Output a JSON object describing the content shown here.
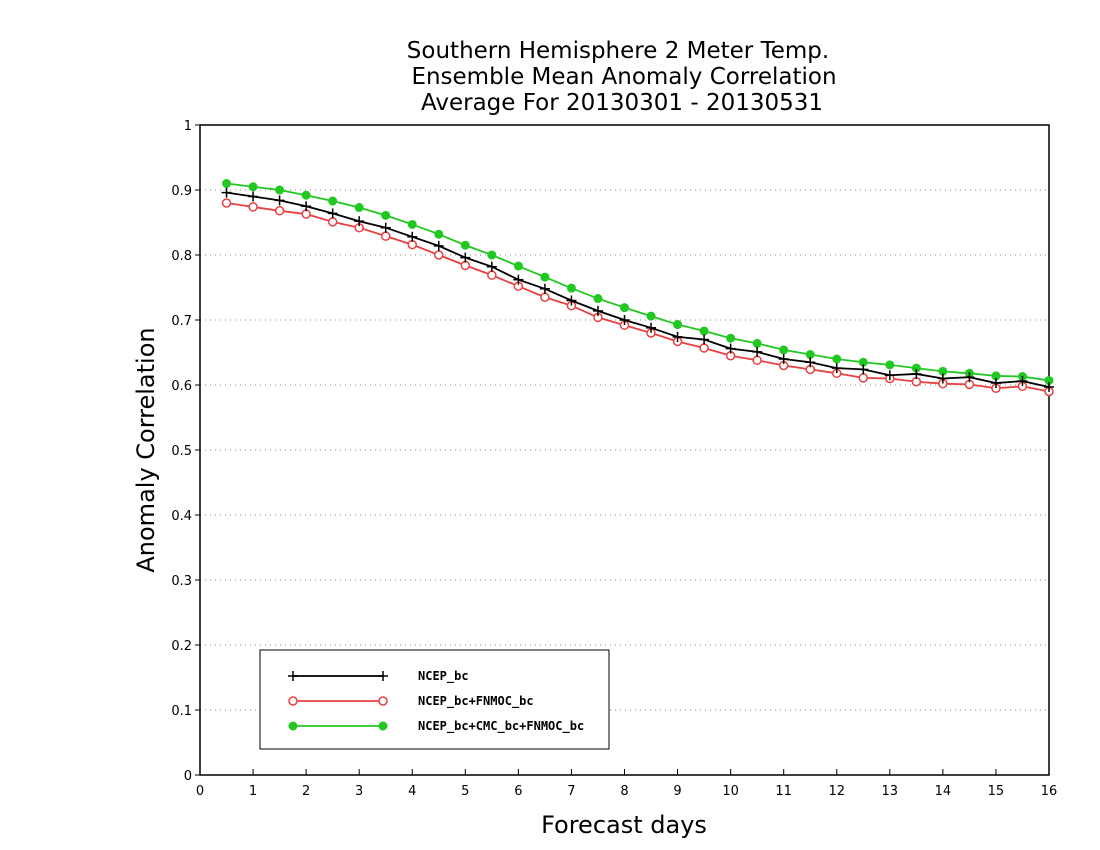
{
  "chart_data": {
    "type": "line",
    "title_lines": [
      "Southern Hemisphere 2 Meter Temp.",
      "Ensemble Mean Anomaly Correlation",
      "Average For 20130301 - 20130531"
    ],
    "xlabel": "Forecast days",
    "ylabel": "Anomaly Correlation",
    "xlim": [
      0,
      16
    ],
    "ylim": [
      0,
      1
    ],
    "x_ticks": [
      "0",
      "1",
      "2",
      "3",
      "4",
      "5",
      "6",
      "7",
      "8",
      "9",
      "10",
      "11",
      "12",
      "13",
      "14",
      "15",
      "16"
    ],
    "y_ticks": [
      "0",
      "0.1",
      "0.2",
      "0.3",
      "0.4",
      "0.5",
      "0.6",
      "0.7",
      "0.8",
      "0.9",
      "1"
    ],
    "grid": "horizontal dotted",
    "legend_position": "bottom-left",
    "x": [
      0.5,
      1,
      1.5,
      2,
      2.5,
      3,
      3.5,
      4,
      4.5,
      5,
      5.5,
      6,
      6.5,
      7,
      7.5,
      8,
      8.5,
      9,
      9.5,
      10,
      10.5,
      11,
      11.5,
      12,
      12.5,
      13,
      13.5,
      14,
      14.5,
      15,
      15.5,
      16
    ],
    "series": [
      {
        "name": "NCEP_bc",
        "color": "#000000",
        "marker": "plus",
        "values": [
          0.896,
          0.89,
          0.884,
          0.875,
          0.864,
          0.852,
          0.842,
          0.828,
          0.814,
          0.796,
          0.782,
          0.762,
          0.748,
          0.73,
          0.714,
          0.7,
          0.688,
          0.674,
          0.67,
          0.656,
          0.651,
          0.64,
          0.635,
          0.626,
          0.624,
          0.615,
          0.617,
          0.61,
          0.612,
          0.603,
          0.606,
          0.597
        ]
      },
      {
        "name": "NCEP_bc+FNMOC_bc",
        "color": "#e84040",
        "marker": "open-circle",
        "values": [
          0.88,
          0.874,
          0.868,
          0.863,
          0.851,
          0.842,
          0.829,
          0.816,
          0.8,
          0.784,
          0.769,
          0.752,
          0.735,
          0.722,
          0.704,
          0.692,
          0.68,
          0.667,
          0.657,
          0.645,
          0.638,
          0.63,
          0.624,
          0.618,
          0.611,
          0.61,
          0.605,
          0.602,
          0.601,
          0.595,
          0.598,
          0.59
        ]
      },
      {
        "name": "NCEP_bc+CMC_bc+FNMOC_bc",
        "color": "#22c822",
        "marker": "filled-circle",
        "values": [
          0.91,
          0.905,
          0.9,
          0.892,
          0.883,
          0.873,
          0.861,
          0.847,
          0.832,
          0.815,
          0.8,
          0.783,
          0.766,
          0.749,
          0.733,
          0.719,
          0.706,
          0.693,
          0.683,
          0.672,
          0.664,
          0.654,
          0.647,
          0.64,
          0.635,
          0.631,
          0.626,
          0.621,
          0.618,
          0.614,
          0.613,
          0.607
        ]
      }
    ]
  }
}
